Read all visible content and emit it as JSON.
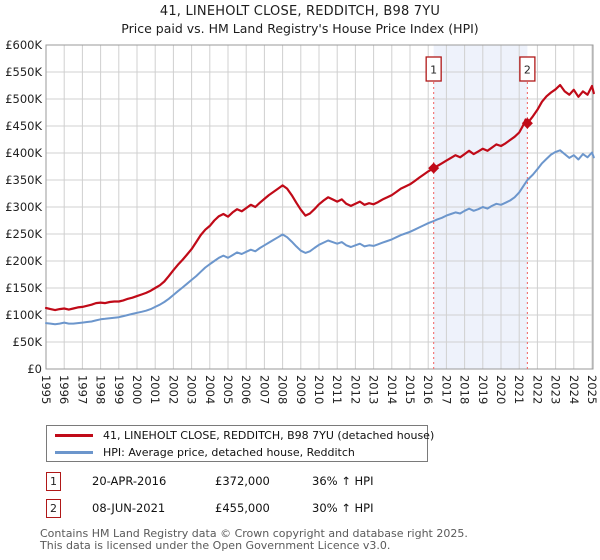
{
  "title": "41, LINEHOLT CLOSE, REDDITCH, B98 7YU",
  "subtitle": "Price paid vs. HM Land Registry's House Price Index (HPI)",
  "chart_data": {
    "type": "line",
    "units": "GBP thousands",
    "grid": true,
    "x_axis": {
      "min": 1995,
      "max": 2025,
      "tick_years": [
        1995,
        1996,
        1997,
        1998,
        1999,
        2000,
        2001,
        2002,
        2003,
        2004,
        2005,
        2006,
        2007,
        2008,
        2009,
        2010,
        2011,
        2012,
        2013,
        2014,
        2015,
        2016,
        2017,
        2018,
        2019,
        2020,
        2021,
        2022,
        2023,
        2024,
        2025
      ]
    },
    "y_axis": {
      "min": 0,
      "max": 600,
      "tick_step": 50,
      "tick_labels": [
        "£0",
        "£50K",
        "£100K",
        "£150K",
        "£200K",
        "£250K",
        "£300K",
        "£350K",
        "£400K",
        "£450K",
        "£500K",
        "£550K",
        "£600K"
      ]
    },
    "colors": {
      "property_line": "#c00a18",
      "hpi_line": "#6c96cc",
      "grid": "#d0d0d0",
      "frame": "#9a9a9a",
      "sale_vline": "#f26d6d",
      "shade": "#eef2fb",
      "marker": "#c00a18",
      "tick_text": "#222222"
    },
    "shaded_region": {
      "from": 2016.3,
      "to": 2021.45
    },
    "sale_markers": [
      {
        "label": "1",
        "year": 2016.3,
        "value": 372
      },
      {
        "label": "2",
        "year": 2021.45,
        "value": 455
      }
    ],
    "series": [
      {
        "name": "41, LINEHOLT CLOSE, REDDITCH, B98 7YU (detached house)",
        "color": "#c00a18",
        "width": 2.2,
        "points": [
          [
            1995,
            113
          ],
          [
            1995.25,
            111
          ],
          [
            1995.5,
            109
          ],
          [
            1995.75,
            111
          ],
          [
            1996,
            112
          ],
          [
            1996.25,
            110
          ],
          [
            1996.5,
            112
          ],
          [
            1996.75,
            114
          ],
          [
            1997,
            115
          ],
          [
            1997.25,
            117
          ],
          [
            1997.5,
            119
          ],
          [
            1997.75,
            122
          ],
          [
            1998,
            123
          ],
          [
            1998.25,
            122
          ],
          [
            1998.5,
            124
          ],
          [
            1998.75,
            125
          ],
          [
            1999,
            125
          ],
          [
            1999.25,
            127
          ],
          [
            1999.5,
            130
          ],
          [
            1999.75,
            132
          ],
          [
            2000,
            135
          ],
          [
            2000.25,
            138
          ],
          [
            2000.5,
            141
          ],
          [
            2000.75,
            145
          ],
          [
            2001,
            150
          ],
          [
            2001.25,
            155
          ],
          [
            2001.5,
            162
          ],
          [
            2001.75,
            172
          ],
          [
            2002,
            183
          ],
          [
            2002.25,
            193
          ],
          [
            2002.5,
            202
          ],
          [
            2002.75,
            212
          ],
          [
            2003,
            222
          ],
          [
            2003.25,
            235
          ],
          [
            2003.5,
            248
          ],
          [
            2003.75,
            258
          ],
          [
            2004,
            265
          ],
          [
            2004.25,
            275
          ],
          [
            2004.5,
            283
          ],
          [
            2004.75,
            287
          ],
          [
            2005,
            282
          ],
          [
            2005.25,
            290
          ],
          [
            2005.5,
            296
          ],
          [
            2005.75,
            292
          ],
          [
            2006,
            298
          ],
          [
            2006.25,
            304
          ],
          [
            2006.5,
            300
          ],
          [
            2006.75,
            308
          ],
          [
            2007,
            315
          ],
          [
            2007.25,
            322
          ],
          [
            2007.5,
            328
          ],
          [
            2007.75,
            334
          ],
          [
            2008,
            340
          ],
          [
            2008.25,
            334
          ],
          [
            2008.5,
            322
          ],
          [
            2008.75,
            308
          ],
          [
            2009,
            295
          ],
          [
            2009.25,
            284
          ],
          [
            2009.5,
            288
          ],
          [
            2009.75,
            296
          ],
          [
            2010,
            305
          ],
          [
            2010.25,
            312
          ],
          [
            2010.5,
            318
          ],
          [
            2010.75,
            314
          ],
          [
            2011,
            310
          ],
          [
            2011.25,
            314
          ],
          [
            2011.5,
            306
          ],
          [
            2011.75,
            302
          ],
          [
            2012,
            306
          ],
          [
            2012.25,
            310
          ],
          [
            2012.5,
            304
          ],
          [
            2012.75,
            307
          ],
          [
            2013,
            305
          ],
          [
            2013.25,
            309
          ],
          [
            2013.5,
            314
          ],
          [
            2013.75,
            318
          ],
          [
            2014,
            322
          ],
          [
            2014.25,
            328
          ],
          [
            2014.5,
            334
          ],
          [
            2014.75,
            338
          ],
          [
            2015,
            342
          ],
          [
            2015.25,
            348
          ],
          [
            2015.5,
            354
          ],
          [
            2015.75,
            360
          ],
          [
            2016,
            366
          ],
          [
            2016.3,
            372
          ],
          [
            2016.5,
            376
          ],
          [
            2016.75,
            381
          ],
          [
            2017,
            386
          ],
          [
            2017.25,
            391
          ],
          [
            2017.5,
            396
          ],
          [
            2017.75,
            392
          ],
          [
            2018,
            398
          ],
          [
            2018.25,
            404
          ],
          [
            2018.5,
            398
          ],
          [
            2018.75,
            403
          ],
          [
            2019,
            408
          ],
          [
            2019.25,
            404
          ],
          [
            2019.5,
            410
          ],
          [
            2019.75,
            416
          ],
          [
            2020,
            413
          ],
          [
            2020.25,
            418
          ],
          [
            2020.5,
            424
          ],
          [
            2020.75,
            430
          ],
          [
            2021,
            438
          ],
          [
            2021.2,
            450
          ],
          [
            2021.35,
            462
          ],
          [
            2021.45,
            455
          ],
          [
            2021.75,
            468
          ],
          [
            2022,
            480
          ],
          [
            2022.25,
            495
          ],
          [
            2022.5,
            505
          ],
          [
            2022.75,
            512
          ],
          [
            2023,
            518
          ],
          [
            2023.25,
            526
          ],
          [
            2023.5,
            514
          ],
          [
            2023.75,
            508
          ],
          [
            2024,
            517
          ],
          [
            2024.25,
            504
          ],
          [
            2024.5,
            514
          ],
          [
            2024.75,
            508
          ],
          [
            2025,
            524
          ],
          [
            2025.1,
            511
          ]
        ]
      },
      {
        "name": "HPI: Average price, detached house, Redditch",
        "color": "#6c96cc",
        "width": 2,
        "points": [
          [
            1995,
            85
          ],
          [
            1995.25,
            84
          ],
          [
            1995.5,
            83
          ],
          [
            1995.75,
            84
          ],
          [
            1996,
            86
          ],
          [
            1996.25,
            84
          ],
          [
            1996.5,
            84
          ],
          [
            1996.75,
            85
          ],
          [
            1997,
            86
          ],
          [
            1997.25,
            87
          ],
          [
            1997.5,
            88
          ],
          [
            1997.75,
            90
          ],
          [
            1998,
            92
          ],
          [
            1998.25,
            93
          ],
          [
            1998.5,
            94
          ],
          [
            1998.75,
            95
          ],
          [
            1999,
            96
          ],
          [
            1999.25,
            98
          ],
          [
            1999.5,
            100
          ],
          [
            1999.75,
            102
          ],
          [
            2000,
            104
          ],
          [
            2000.25,
            106
          ],
          [
            2000.5,
            108
          ],
          [
            2000.75,
            111
          ],
          [
            2001,
            115
          ],
          [
            2001.25,
            119
          ],
          [
            2001.5,
            124
          ],
          [
            2001.75,
            130
          ],
          [
            2002,
            137
          ],
          [
            2002.25,
            144
          ],
          [
            2002.5,
            151
          ],
          [
            2002.75,
            158
          ],
          [
            2003,
            165
          ],
          [
            2003.25,
            172
          ],
          [
            2003.5,
            180
          ],
          [
            2003.75,
            188
          ],
          [
            2004,
            194
          ],
          [
            2004.25,
            200
          ],
          [
            2004.5,
            206
          ],
          [
            2004.75,
            210
          ],
          [
            2005,
            206
          ],
          [
            2005.25,
            211
          ],
          [
            2005.5,
            216
          ],
          [
            2005.75,
            213
          ],
          [
            2006,
            217
          ],
          [
            2006.25,
            221
          ],
          [
            2006.5,
            218
          ],
          [
            2006.75,
            224
          ],
          [
            2007,
            229
          ],
          [
            2007.25,
            234
          ],
          [
            2007.5,
            239
          ],
          [
            2007.75,
            244
          ],
          [
            2008,
            249
          ],
          [
            2008.25,
            244
          ],
          [
            2008.5,
            236
          ],
          [
            2008.75,
            227
          ],
          [
            2009,
            219
          ],
          [
            2009.25,
            215
          ],
          [
            2009.5,
            218
          ],
          [
            2009.75,
            224
          ],
          [
            2010,
            230
          ],
          [
            2010.25,
            234
          ],
          [
            2010.5,
            238
          ],
          [
            2010.75,
            235
          ],
          [
            2011,
            232
          ],
          [
            2011.25,
            235
          ],
          [
            2011.5,
            229
          ],
          [
            2011.75,
            226
          ],
          [
            2012,
            229
          ],
          [
            2012.25,
            232
          ],
          [
            2012.5,
            227
          ],
          [
            2012.75,
            229
          ],
          [
            2013,
            228
          ],
          [
            2013.25,
            231
          ],
          [
            2013.5,
            234
          ],
          [
            2013.75,
            237
          ],
          [
            2014,
            240
          ],
          [
            2014.25,
            244
          ],
          [
            2014.5,
            248
          ],
          [
            2014.75,
            251
          ],
          [
            2015,
            254
          ],
          [
            2015.25,
            258
          ],
          [
            2015.5,
            262
          ],
          [
            2015.75,
            266
          ],
          [
            2016,
            270
          ],
          [
            2016.3,
            274
          ],
          [
            2016.5,
            277
          ],
          [
            2016.75,
            280
          ],
          [
            2017,
            284
          ],
          [
            2017.25,
            287
          ],
          [
            2017.5,
            290
          ],
          [
            2017.75,
            288
          ],
          [
            2018,
            293
          ],
          [
            2018.25,
            297
          ],
          [
            2018.5,
            293
          ],
          [
            2018.75,
            296
          ],
          [
            2019,
            300
          ],
          [
            2019.25,
            297
          ],
          [
            2019.5,
            302
          ],
          [
            2019.75,
            306
          ],
          [
            2020,
            304
          ],
          [
            2020.25,
            308
          ],
          [
            2020.5,
            312
          ],
          [
            2020.75,
            318
          ],
          [
            2021,
            327
          ],
          [
            2021.25,
            340
          ],
          [
            2021.45,
            350
          ],
          [
            2021.75,
            360
          ],
          [
            2022,
            370
          ],
          [
            2022.25,
            381
          ],
          [
            2022.5,
            389
          ],
          [
            2022.75,
            397
          ],
          [
            2023,
            402
          ],
          [
            2023.25,
            405
          ],
          [
            2023.5,
            398
          ],
          [
            2023.75,
            391
          ],
          [
            2024,
            396
          ],
          [
            2024.25,
            388
          ],
          [
            2024.5,
            398
          ],
          [
            2024.75,
            392
          ],
          [
            2025,
            401
          ],
          [
            2025.1,
            392
          ]
        ]
      }
    ]
  },
  "legend": {
    "items": [
      {
        "label": "41, LINEHOLT CLOSE, REDDITCH, B98 7YU (detached house)",
        "color": "#c00a18"
      },
      {
        "label": "HPI: Average price, detached house, Redditch",
        "color": "#6c96cc"
      }
    ]
  },
  "transactions": [
    {
      "num": "1",
      "date": "20-APR-2016",
      "price": "£372,000",
      "hpi": "36% ↑ HPI"
    },
    {
      "num": "2",
      "date": "08-JUN-2021",
      "price": "£455,000",
      "hpi": "30% ↑ HPI"
    }
  ],
  "footer": {
    "line1": "Contains HM Land Registry data © Crown copyright and database right 2025.",
    "line2": "This data is licensed under the Open Government Licence v3.0."
  }
}
